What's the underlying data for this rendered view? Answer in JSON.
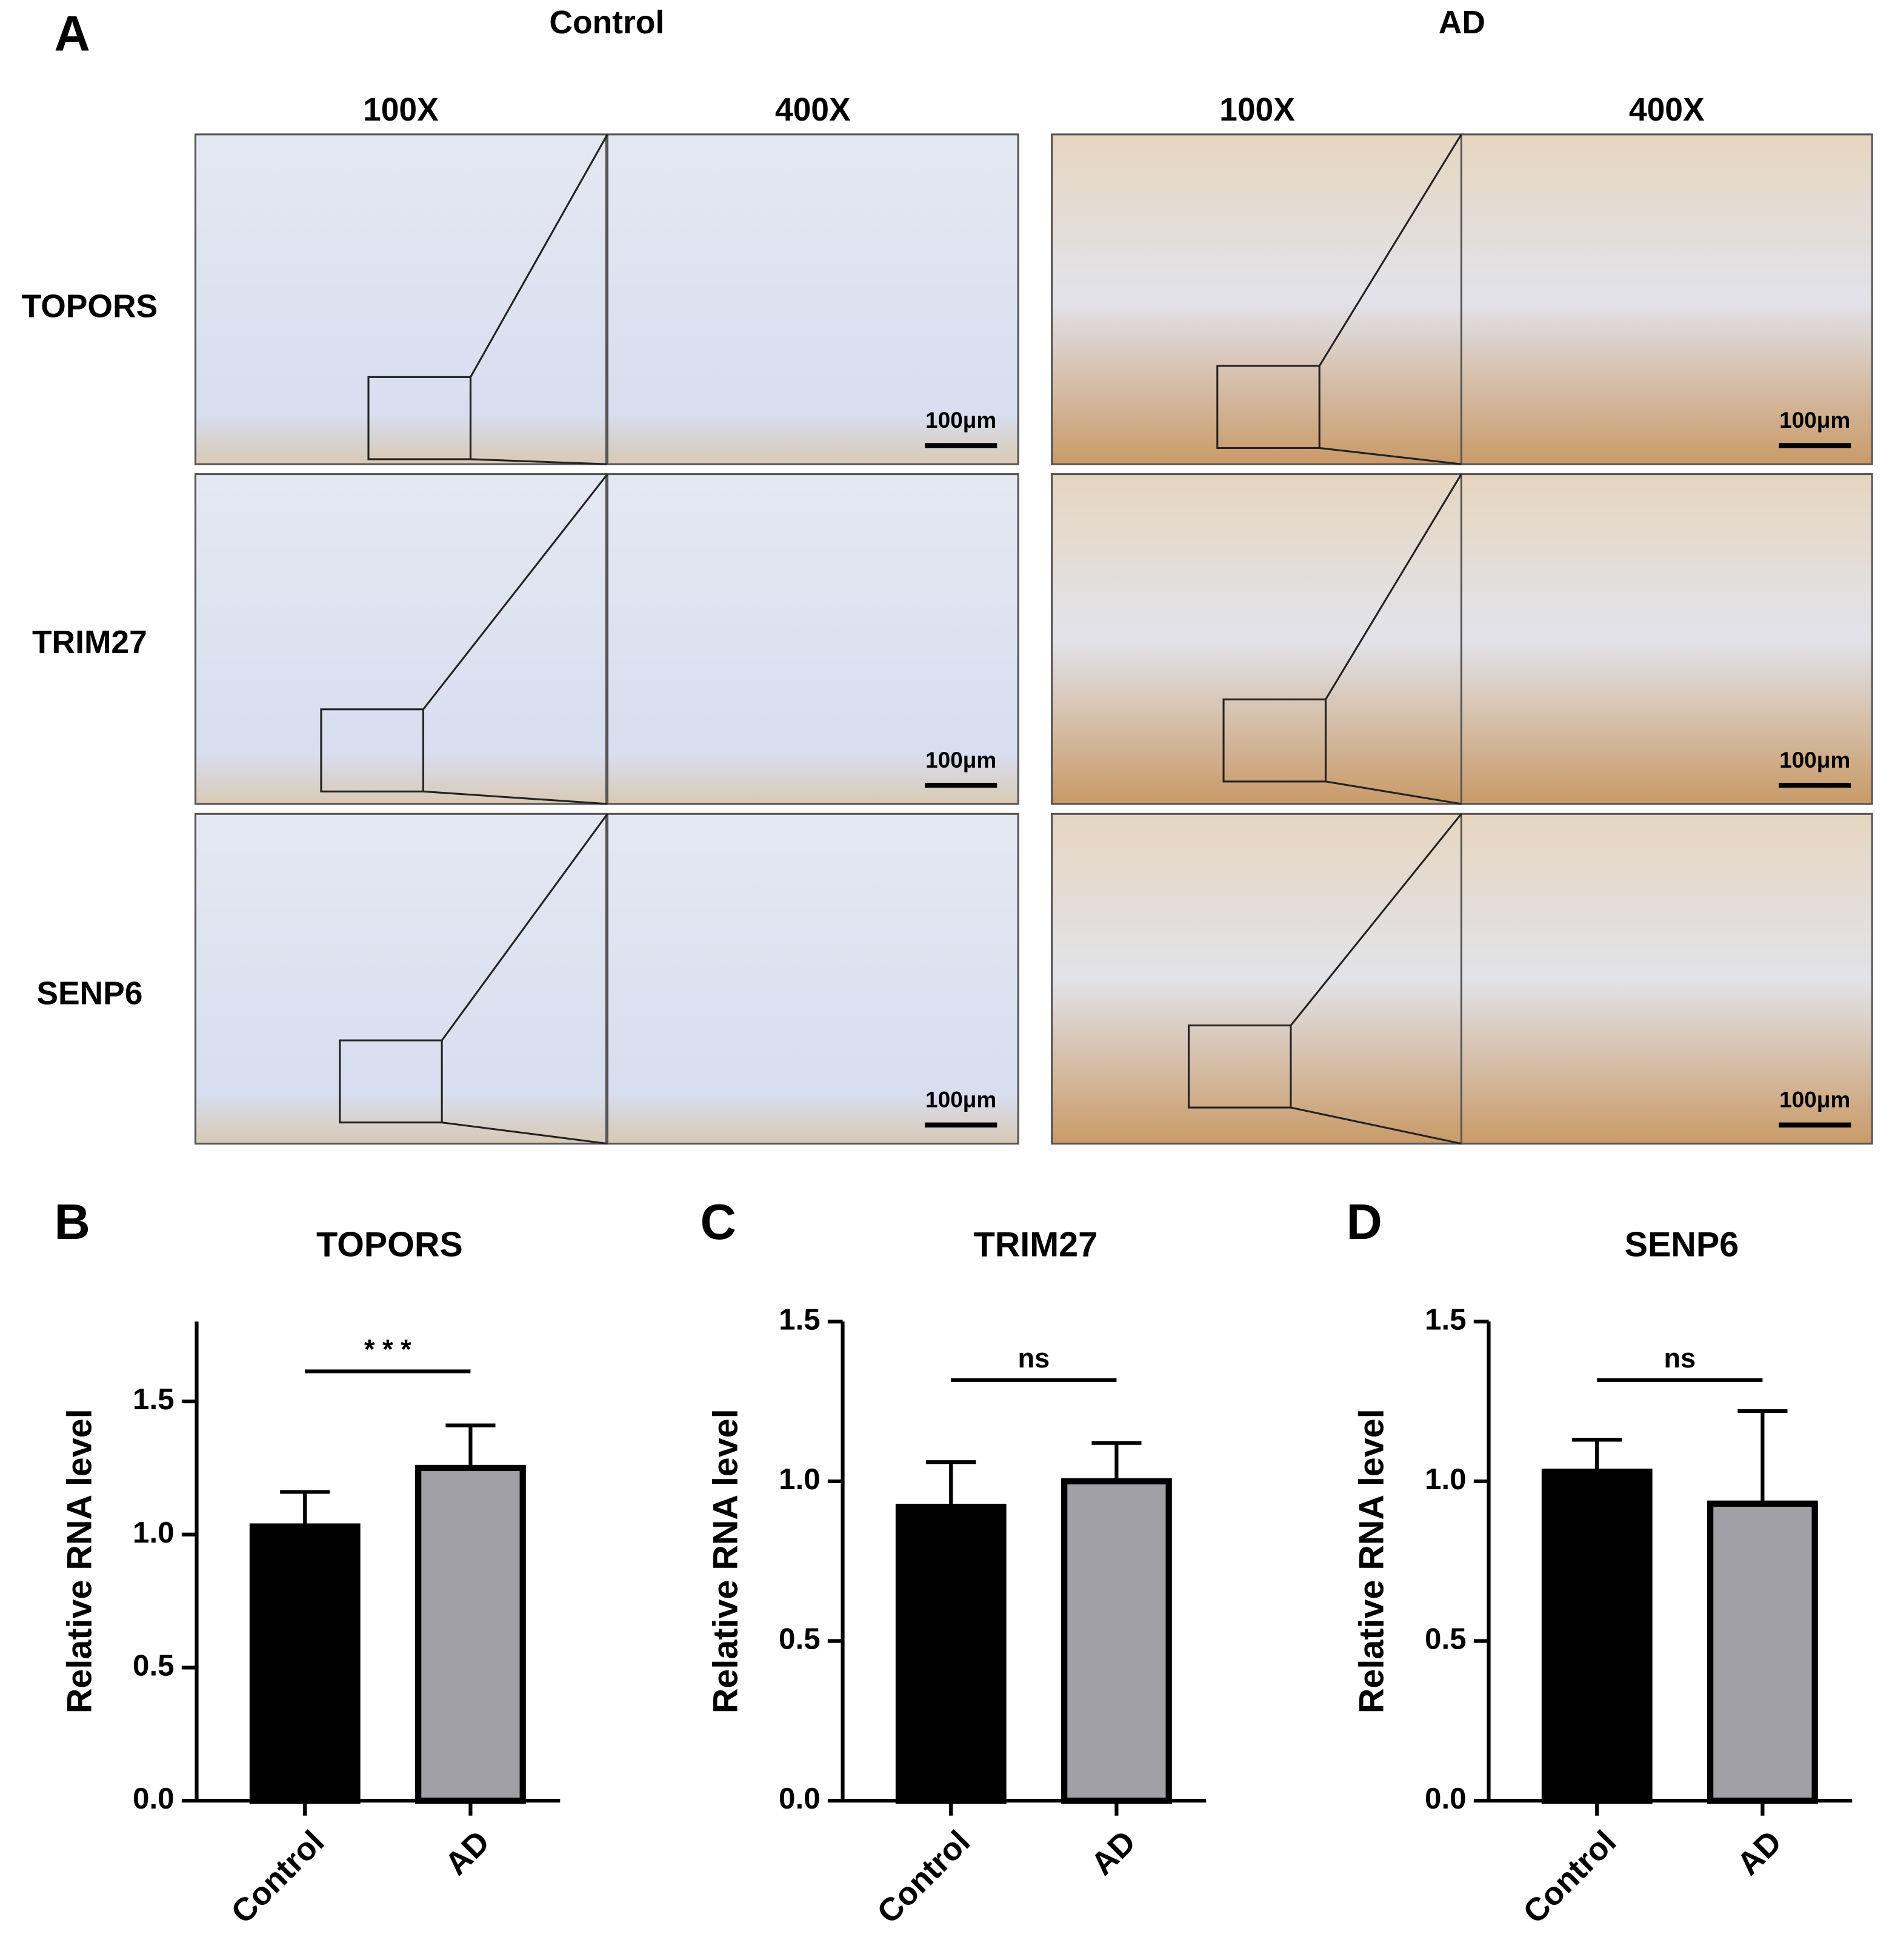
{
  "panel_a": {
    "label": "A",
    "groups": [
      {
        "name": "Control",
        "magnifications": [
          "100X",
          "400X"
        ]
      },
      {
        "name": "AD",
        "magnifications": [
          "100X",
          "400X"
        ]
      }
    ],
    "rows": [
      "TOPORS",
      "TRIM27",
      "SENP6"
    ],
    "scale_bar": "100μm"
  },
  "chart_data": [
    {
      "type": "bar",
      "panel": "B",
      "title": "TOPORS",
      "ylabel": "Relative RNA level",
      "categories": [
        "Control",
        "AD"
      ],
      "values": [
        1.03,
        1.25
      ],
      "errors": [
        0.13,
        0.16
      ],
      "colors": [
        "#000000",
        "#a0a0a6"
      ],
      "ylim": [
        0,
        1.8
      ],
      "yticks": [
        {
          "value": 0,
          "label": "0.0"
        },
        0.5,
        {
          "value": 1,
          "label": "1.0"
        },
        1.5
      ],
      "significance": "* * *"
    },
    {
      "type": "bar",
      "panel": "C",
      "title": "TRIM27",
      "ylabel": "Relative RNA level",
      "categories": [
        "Control",
        "AD"
      ],
      "values": [
        0.92,
        1.0
      ],
      "errors": [
        0.14,
        0.12
      ],
      "colors": [
        "#000000",
        "#a0a0a6"
      ],
      "ylim": [
        0,
        1.5
      ],
      "yticks": [
        {
          "value": 0,
          "label": "0.0"
        },
        0.5,
        {
          "value": 1,
          "label": "1.0"
        },
        1.5
      ],
      "significance": "ns"
    },
    {
      "type": "bar",
      "panel": "D",
      "title": "SENP6",
      "ylabel": "Relative RNA level",
      "categories": [
        "Control",
        "AD"
      ],
      "values": [
        1.03,
        0.93
      ],
      "errors": [
        0.1,
        0.29
      ],
      "colors": [
        "#000000",
        "#a0a0a6"
      ],
      "ylim": [
        0,
        1.5
      ],
      "yticks": [
        {
          "value": 0,
          "label": "0.0"
        },
        0.5,
        {
          "value": 1,
          "label": "1.0"
        },
        1.5
      ],
      "significance": "ns"
    }
  ]
}
